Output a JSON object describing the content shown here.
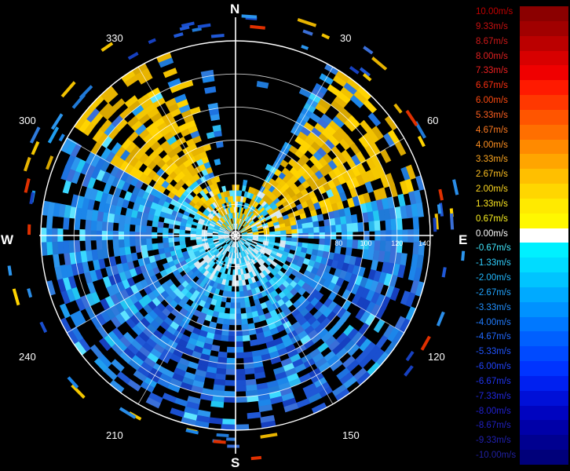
{
  "compass": {
    "north": "N",
    "east": "E",
    "south": "S",
    "west": "W"
  },
  "azimuth_labels": [
    "30",
    "60",
    "120",
    "150",
    "210",
    "240",
    "300",
    "330"
  ],
  "range_labels": [
    "80",
    "100",
    "120",
    "140"
  ],
  "legend": {
    "entries": [
      {
        "label": "10.00m/s",
        "color": "#8b0000",
        "text_color": "#c00000"
      },
      {
        "label": "9.33m/s",
        "color": "#a10000",
        "text_color": "#c81010"
      },
      {
        "label": "8.67m/s",
        "color": "#bb0000",
        "text_color": "#d01818"
      },
      {
        "label": "8.00m/s",
        "color": "#d80000",
        "text_color": "#e02020"
      },
      {
        "label": "7.33m/s",
        "color": "#f00000",
        "text_color": "#f02020"
      },
      {
        "label": "6.67m/s",
        "color": "#ff1a00",
        "text_color": "#ff3010"
      },
      {
        "label": "6.00m/s",
        "color": "#ff3800",
        "text_color": "#ff4a10"
      },
      {
        "label": "5.33m/s",
        "color": "#ff5500",
        "text_color": "#ff6020"
      },
      {
        "label": "4.67m/s",
        "color": "#ff6f00",
        "text_color": "#ff7a20"
      },
      {
        "label": "4.00m/s",
        "color": "#ff8a00",
        "text_color": "#ff9020"
      },
      {
        "label": "3.33m/s",
        "color": "#ffa500",
        "text_color": "#ffa820"
      },
      {
        "label": "2.67m/s",
        "color": "#ffbf00",
        "text_color": "#ffc020"
      },
      {
        "label": "2.00m/s",
        "color": "#ffd600",
        "text_color": "#ffd820"
      },
      {
        "label": "1.33m/s",
        "color": "#ffea00",
        "text_color": "#ffe820"
      },
      {
        "label": "0.67m/s",
        "color": "#fff800",
        "text_color": "#fff420"
      },
      {
        "label": "0.00m/s",
        "color": "#ffffff",
        "text_color": "#ffffff"
      },
      {
        "label": "-0.67m/s",
        "color": "#00f0ff",
        "text_color": "#40e8ff"
      },
      {
        "label": "-1.33m/s",
        "color": "#00dcff",
        "text_color": "#30d0ff"
      },
      {
        "label": "-2.00m/s",
        "color": "#00c4ff",
        "text_color": "#20b8ff"
      },
      {
        "label": "-2.67m/s",
        "color": "#00aaff",
        "text_color": "#20a4ff"
      },
      {
        "label": "-3.33m/s",
        "color": "#0092ff",
        "text_color": "#2090ff"
      },
      {
        "label": "-4.00m/s",
        "color": "#0078ff",
        "text_color": "#207cff"
      },
      {
        "label": "-4.67m/s",
        "color": "#0060ff",
        "text_color": "#2068ff"
      },
      {
        "label": "-5.33m/s",
        "color": "#004aff",
        "text_color": "#2054ff"
      },
      {
        "label": "-6.00m/s",
        "color": "#0034ff",
        "text_color": "#2044ff"
      },
      {
        "label": "-6.67m/s",
        "color": "#0020f0",
        "text_color": "#2034f0"
      },
      {
        "label": "-7.33m/s",
        "color": "#0010d8",
        "text_color": "#2028e0"
      },
      {
        "label": "-8.00m/s",
        "color": "#0004c0",
        "text_color": "#2020d0"
      },
      {
        "label": "-8.67m/s",
        "color": "#0000a8",
        "text_color": "#2020c0"
      },
      {
        "label": "-9.33m/s",
        "color": "#000090",
        "text_color": "#2020b0"
      },
      {
        "label": "-10.00m/s",
        "color": "#00007a",
        "text_color": "#2020a0"
      }
    ]
  }
}
